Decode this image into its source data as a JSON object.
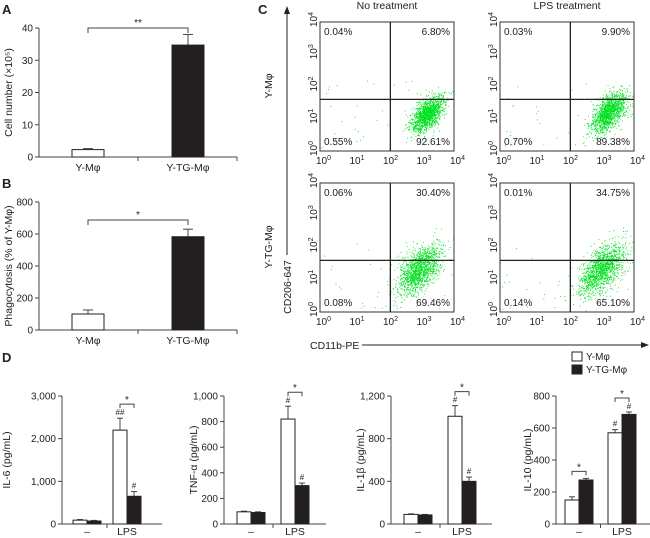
{
  "panel_labels": {
    "A": "A",
    "B": "B",
    "C": "C",
    "D": "D"
  },
  "colors": {
    "bar_fill_y": "#ffffff",
    "bar_fill_tg": "#231f20",
    "scatter_points": "#00e020",
    "axis": "#555555"
  },
  "chart_data": [
    {
      "panel": "A",
      "type": "bar",
      "categories": [
        "Y-Mφ",
        "Y-TG-Mφ"
      ],
      "values": [
        2.3,
        34.7
      ],
      "errors": [
        0.3,
        3.3
      ],
      "ylabel": "Cell number (×10⁵)",
      "ylim": [
        0,
        40
      ],
      "ytick_labels": [
        "0",
        "10",
        "20",
        "30",
        "40"
      ],
      "significance": [
        {
          "between": [
            0,
            1
          ],
          "label": "**"
        }
      ]
    },
    {
      "panel": "B",
      "type": "bar",
      "categories": [
        "Y-Mφ",
        "Y-TG-Mφ"
      ],
      "values": [
        100,
        583
      ],
      "errors": [
        25,
        47
      ],
      "ylabel": "Phagocytosis (% of Y-Mφ)",
      "ylim": [
        0,
        800
      ],
      "ytick_labels": [
        "0",
        "200",
        "400",
        "600",
        "800"
      ],
      "significance": [
        {
          "between": [
            0,
            1
          ],
          "label": "*"
        }
      ]
    },
    {
      "panel": "C",
      "type": "scatter",
      "xlabel": "CD11b-PE",
      "ylabel": "CD206-647",
      "xscale": "log",
      "yscale": "log",
      "xlim": [
        1,
        10000
      ],
      "ylim": [
        1,
        10000
      ],
      "tick_labels": [
        {
          "base": "10",
          "exp": "0"
        },
        {
          "base": "10",
          "exp": "1"
        },
        {
          "base": "10",
          "exp": "2"
        },
        {
          "base": "10",
          "exp": "3"
        },
        {
          "base": "10",
          "exp": "4"
        }
      ],
      "columns": [
        "No treatment",
        "LPS treatment"
      ],
      "rows": [
        "Y-Mφ",
        "Y-TG-Mφ"
      ],
      "plots": [
        {
          "row": 0,
          "col": 0,
          "quadrants": {
            "upper_left": "0.04%",
            "upper_right": "6.80%",
            "lower_left": "0.55%",
            "lower_right": "92.61%"
          }
        },
        {
          "row": 0,
          "col": 1,
          "quadrants": {
            "upper_left": "0.03%",
            "upper_right": "9.90%",
            "lower_left": "0.70%",
            "lower_right": "89.38%"
          }
        },
        {
          "row": 1,
          "col": 0,
          "quadrants": {
            "upper_left": "0.06%",
            "upper_right": "30.40%",
            "lower_left": "0.08%",
            "lower_right": "69.46%"
          }
        },
        {
          "row": 1,
          "col": 1,
          "quadrants": {
            "upper_left": "0.01%",
            "upper_right": "34.75%",
            "lower_left": "0.14%",
            "lower_right": "65.10%"
          }
        }
      ]
    },
    {
      "panel": "D",
      "type": "bar",
      "legend": [
        "Y-Mφ",
        "Y-TG-Mφ"
      ],
      "legend_position": "top-right",
      "categories": [
        "–",
        "LPS"
      ],
      "subplots": [
        {
          "ylabel": "IL-6 (pg/mL)",
          "ylim": [
            0,
            3000
          ],
          "ytick_labels": [
            "0",
            "1,000",
            "2,000",
            "3,000"
          ],
          "series": [
            {
              "name": "Y-Mφ",
              "values": [
                90,
                2200
              ],
              "errors": [
                15,
                280
              ],
              "markers": [
                "",
                "##"
              ]
            },
            {
              "name": "Y-TG-Mφ",
              "values": [
                70,
                650
              ],
              "errors": [
                15,
                110
              ],
              "markers": [
                "",
                "#"
              ]
            }
          ],
          "significance": [
            {
              "group": 1,
              "label": "*"
            }
          ]
        },
        {
          "ylabel": "TNF-α (pg/mL)",
          "ylim": [
            0,
            1000
          ],
          "ytick_labels": [
            "0",
            "200",
            "400",
            "600",
            "800",
            "1,000"
          ],
          "series": [
            {
              "name": "Y-Mφ",
              "values": [
                95,
                820
              ],
              "errors": [
                5,
                100
              ],
              "markers": [
                "",
                "#"
              ]
            },
            {
              "name": "Y-TG-Mφ",
              "values": [
                90,
                300
              ],
              "errors": [
                5,
                20
              ],
              "markers": [
                "",
                "#"
              ]
            }
          ],
          "significance": [
            {
              "group": 1,
              "label": "*"
            }
          ]
        },
        {
          "ylabel": "IL-1β (pg/mL)",
          "ylim": [
            0,
            1200
          ],
          "ytick_labels": [
            "0",
            "400",
            "800",
            "1,200"
          ],
          "series": [
            {
              "name": "Y-Mφ",
              "values": [
                90,
                1010
              ],
              "errors": [
                5,
                100
              ],
              "markers": [
                "",
                "#"
              ]
            },
            {
              "name": "Y-TG-Mφ",
              "values": [
                85,
                400
              ],
              "errors": [
                5,
                40
              ],
              "markers": [
                "",
                "#"
              ]
            }
          ],
          "significance": [
            {
              "group": 1,
              "label": "*"
            }
          ]
        },
        {
          "ylabel": "IL-10 (pg/mL)",
          "ylim": [
            0,
            800
          ],
          "ytick_labels": [
            "0",
            "200",
            "400",
            "600",
            "800"
          ],
          "series": [
            {
              "name": "Y-Mφ",
              "values": [
                150,
                570
              ],
              "errors": [
                20,
                20
              ],
              "markers": [
                "",
                "#"
              ]
            },
            {
              "name": "Y-TG-Mφ",
              "values": [
                275,
                685
              ],
              "errors": [
                10,
                15
              ],
              "markers": [
                "",
                "#"
              ]
            }
          ],
          "significance": [
            {
              "group": 0,
              "label": "*"
            },
            {
              "group": 1,
              "label": "*"
            }
          ]
        }
      ]
    }
  ]
}
